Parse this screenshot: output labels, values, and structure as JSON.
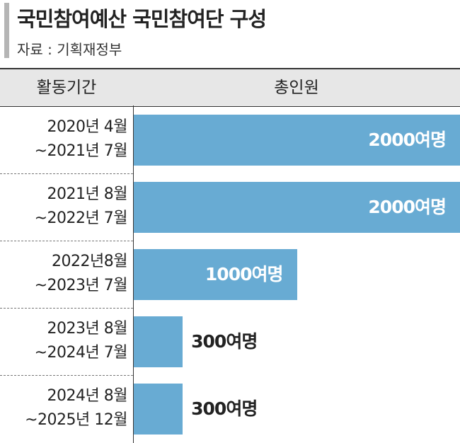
{
  "chart_data": {
    "type": "bar",
    "orientation": "horizontal",
    "title": "국민참여예산 국민참여단 구성",
    "subtitle": "자료 : 기획재정부",
    "category_header": "활동기간",
    "value_header": "총인원",
    "categories": [
      "2020년 4월\n~2021년 7월",
      "2021년 8월\n~2022년 7월",
      "2022년8월\n~2023년 7월",
      "2023년 8월\n~2024년 7월",
      "2024년 8월\n~2025년 12월"
    ],
    "values": [
      2000,
      2000,
      1000,
      300,
      300
    ],
    "value_labels": [
      "2000여명",
      "2000여명",
      "1000여명",
      "300여명",
      "300여명"
    ],
    "color": "#68abd3"
  }
}
